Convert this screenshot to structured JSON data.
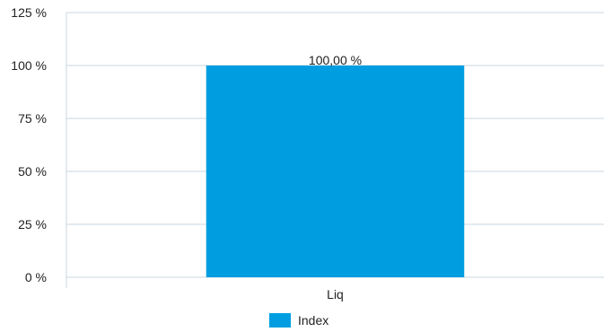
{
  "chart_data": {
    "type": "bar",
    "title": "",
    "xlabel": "",
    "ylabel": "",
    "categories": [
      "Liq"
    ],
    "series": [
      {
        "name": "Index",
        "values": [
          100
        ],
        "color": "#009ee0"
      }
    ],
    "ylim": [
      0,
      125
    ],
    "yticks": [
      0,
      25,
      50,
      75,
      100,
      125
    ],
    "ytick_labels": [
      "0 %",
      "25 %",
      "50 %",
      "75 %",
      "100 %",
      "125 %"
    ],
    "data_labels": [
      "100,00 %"
    ],
    "grid": true,
    "legend_position": "bottom"
  }
}
